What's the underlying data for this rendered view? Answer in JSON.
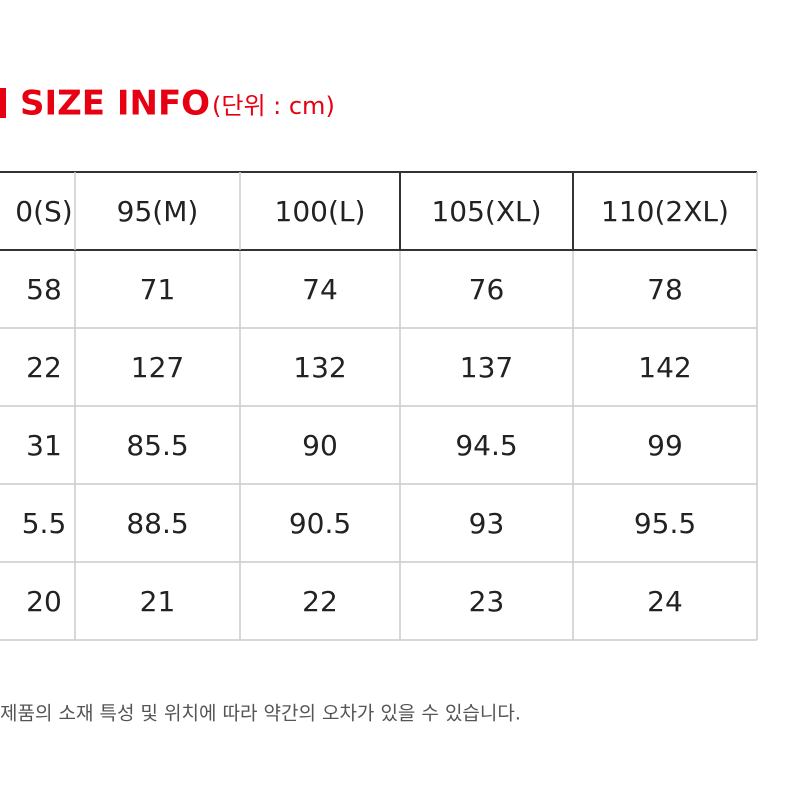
{
  "header": {
    "title": "SIZE INFO",
    "unit": "(단위 : cm)"
  },
  "table": {
    "header": [
      "0(S)",
      "95(M)",
      "100(L)",
      "105(XL)",
      "110(2XL)"
    ],
    "rows": [
      [
        "58",
        "71",
        "74",
        "76",
        "78"
      ],
      [
        "22",
        "127",
        "132",
        "137",
        "142"
      ],
      [
        "31",
        "85.5",
        "90",
        "94.5",
        "99"
      ],
      [
        "5.5",
        "88.5",
        "90.5",
        "93",
        "95.5"
      ],
      [
        "20",
        "21",
        "22",
        "23",
        "24"
      ]
    ]
  },
  "footnote": "제품의 소재 특성 및 위치에 따라 약간의 오차가 있을 수 있습니다."
}
